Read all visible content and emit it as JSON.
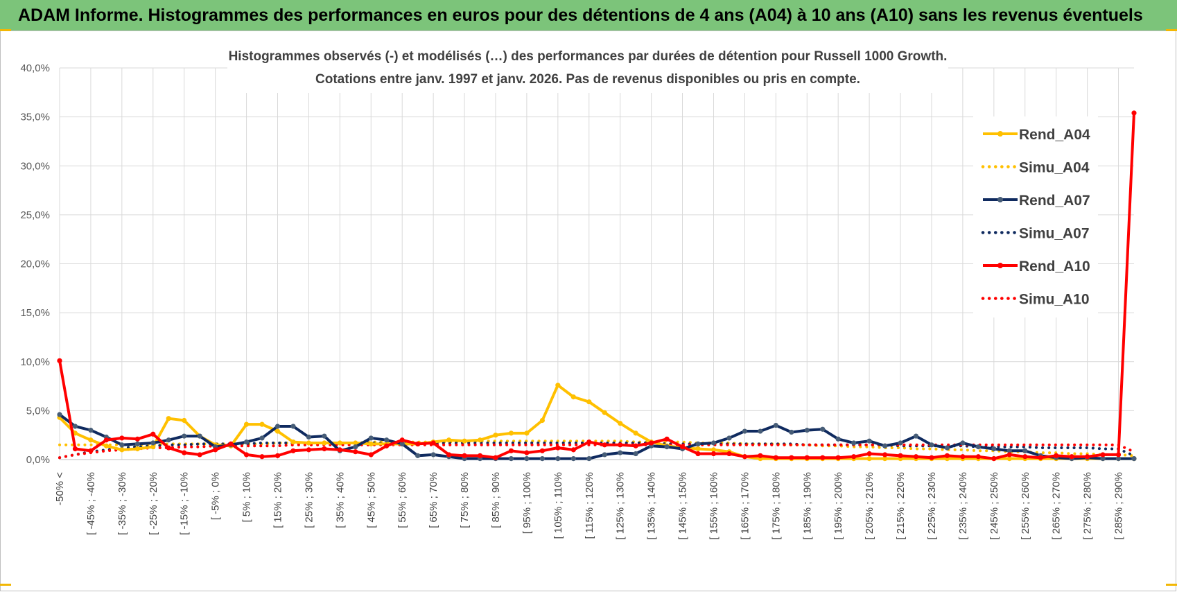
{
  "header": {
    "title": "ADAM Informe. Histogrammes des performances en euros pour des détentions de 4 ans (A04) à 10 ans (A10) sans les revenus éventuels"
  },
  "colors": {
    "banner": "#7cc47a",
    "accent": "#f2b705"
  },
  "chart_data": {
    "type": "line",
    "title": "Histogrammes observés (-) et modélisés (…) des performances par durées de détention pour Russell 1000 Growth.",
    "subtitle": "Cotations entre janv. 1997 et janv. 2026. Pas de revenus disponibles ou pris en compte.",
    "xlabel": "",
    "ylabel": "",
    "ylim": [
      0,
      40
    ],
    "yticks": [
      "0,0%",
      "5,0%",
      "10,0%",
      "15,0%",
      "20,0%",
      "25,0%",
      "30,0%",
      "35,0%",
      "40,0%"
    ],
    "x_tick_labels": [
      "-50% <",
      "[ -45% ; -40%",
      "[ -35% ; -30%",
      "[ -25% ; -20%",
      "[ -15% ; -10%",
      "[ -5% ; 0%",
      "[ 5% ; 10%",
      "[ 15% ; 20%",
      "[ 25% ; 30%",
      "[ 35% ; 40%",
      "[ 45% ; 50%",
      "[ 55% ; 60%",
      "[ 65% ; 70%",
      "[ 75% ; 80%",
      "[ 85% ; 90%",
      "[ 95% ; 100%",
      "[ 105% ; 110%",
      "[ 115% ; 120%",
      "[ 125% ; 130%",
      "[ 135% ; 140%",
      "[ 145% ; 150%",
      "[ 155% ; 160%",
      "[ 165% ; 170%",
      "[ 175% ; 180%",
      "[ 185% ; 190%",
      "[ 195% ; 200%",
      "[ 205% ; 210%",
      "[ 215% ; 220%",
      "[ 225% ; 230%",
      "[ 235% ; 240%",
      "[ 245% ; 250%",
      "[ 255% ; 260%",
      "[ 265% ; 270%",
      "[ 275% ; 280%",
      "[ 285% ; 290%"
    ],
    "category_count": 70,
    "grid": true,
    "legend_position": "right",
    "series": [
      {
        "name": "Rend_A04",
        "color": "#ffc000",
        "style": "solid",
        "markers": true,
        "values": [
          4.3,
          2.7,
          2.0,
          1.4,
          1.0,
          1.1,
          1.3,
          4.2,
          4.0,
          2.4,
          1.5,
          1.4,
          3.6,
          3.6,
          2.9,
          1.8,
          1.7,
          1.7,
          1.7,
          1.7,
          1.6,
          1.6,
          1.6,
          1.6,
          1.8,
          2.0,
          1.9,
          2.0,
          2.5,
          2.7,
          2.7,
          4.0,
          7.6,
          6.4,
          5.9,
          4.8,
          3.7,
          2.7,
          1.8,
          1.4,
          1.2,
          1.1,
          1.0,
          0.8,
          0.3,
          0.1,
          0.1,
          0.1,
          0.1,
          0.1,
          0.1,
          0.1,
          0.1,
          0.1,
          0.1,
          0.1,
          0.1,
          0.1,
          0.1,
          0.1,
          0.1,
          0.1,
          0.1,
          0.1,
          0.1,
          0.1,
          0.1,
          0.1,
          0.1,
          0.1
        ]
      },
      {
        "name": "Simu_A04",
        "color": "#ffc000",
        "style": "dotted",
        "markers": false,
        "values": [
          1.5,
          1.5,
          1.5,
          1.5,
          1.5,
          1.5,
          1.5,
          1.6,
          1.6,
          1.6,
          1.6,
          1.6,
          1.6,
          1.6,
          1.7,
          1.7,
          1.7,
          1.7,
          1.7,
          1.7,
          1.8,
          1.8,
          1.8,
          1.8,
          1.8,
          1.8,
          1.9,
          1.9,
          1.9,
          1.9,
          1.9,
          1.9,
          1.9,
          1.9,
          1.9,
          1.9,
          1.9,
          1.8,
          1.8,
          1.8,
          1.8,
          1.7,
          1.7,
          1.7,
          1.6,
          1.6,
          1.6,
          1.5,
          1.5,
          1.4,
          1.4,
          1.3,
          1.3,
          1.2,
          1.2,
          1.1,
          1.1,
          1.0,
          1.0,
          0.9,
          0.9,
          0.8,
          0.8,
          0.7,
          0.7,
          0.6,
          0.6,
          0.5,
          0.5,
          0.4
        ]
      },
      {
        "name": "Rend_A07",
        "color": "#0f2a5f",
        "style": "solid",
        "markers": true,
        "values": [
          4.6,
          3.4,
          3.0,
          2.3,
          1.5,
          1.6,
          1.7,
          2.0,
          2.4,
          2.4,
          1.3,
          1.5,
          1.8,
          2.2,
          3.4,
          3.4,
          2.3,
          2.4,
          0.9,
          1.3,
          2.2,
          2.0,
          1.6,
          0.4,
          0.5,
          0.3,
          0.1,
          0.1,
          0.1,
          0.1,
          0.1,
          0.1,
          0.1,
          0.1,
          0.1,
          0.5,
          0.7,
          0.6,
          1.4,
          1.3,
          1.1,
          1.6,
          1.7,
          2.2,
          2.9,
          2.9,
          3.5,
          2.8,
          3.0,
          3.1,
          2.1,
          1.7,
          1.9,
          1.4,
          1.7,
          2.4,
          1.5,
          1.2,
          1.7,
          1.3,
          1.1,
          0.9,
          0.9,
          0.4,
          0.2,
          0.1,
          0.2,
          0.1,
          0.1,
          0.1
        ]
      },
      {
        "name": "Simu_A07",
        "color": "#0f2a5f",
        "style": "dotted",
        "markers": false,
        "values": [
          0.2,
          0.5,
          0.8,
          1.0,
          1.2,
          1.3,
          1.4,
          1.5,
          1.5,
          1.6,
          1.6,
          1.6,
          1.6,
          1.7,
          1.7,
          1.7,
          1.7,
          1.7,
          1.7,
          1.7,
          1.7,
          1.7,
          1.7,
          1.7,
          1.7,
          1.7,
          1.7,
          1.7,
          1.7,
          1.7,
          1.7,
          1.7,
          1.7,
          1.7,
          1.7,
          1.7,
          1.7,
          1.7,
          1.7,
          1.6,
          1.6,
          1.6,
          1.6,
          1.6,
          1.6,
          1.6,
          1.6,
          1.6,
          1.5,
          1.5,
          1.5,
          1.5,
          1.5,
          1.5,
          1.4,
          1.4,
          1.4,
          1.4,
          1.4,
          1.3,
          1.3,
          1.3,
          1.3,
          1.2,
          1.2,
          1.2,
          1.2,
          1.1,
          1.1,
          0.4
        ]
      },
      {
        "name": "Rend_A10",
        "color": "#ff0000",
        "style": "solid",
        "markers": true,
        "values": [
          10.1,
          1.1,
          0.9,
          2.0,
          2.2,
          2.1,
          2.6,
          1.2,
          0.7,
          0.5,
          1.0,
          1.6,
          0.5,
          0.3,
          0.4,
          0.9,
          1.0,
          1.1,
          1.0,
          0.8,
          0.5,
          1.4,
          2.0,
          1.6,
          1.7,
          0.5,
          0.4,
          0.4,
          0.2,
          0.9,
          0.7,
          0.9,
          1.2,
          1.0,
          1.8,
          1.5,
          1.5,
          1.4,
          1.7,
          2.1,
          1.3,
          0.6,
          0.6,
          0.6,
          0.3,
          0.4,
          0.2,
          0.2,
          0.2,
          0.2,
          0.2,
          0.3,
          0.6,
          0.5,
          0.4,
          0.3,
          0.2,
          0.4,
          0.3,
          0.3,
          0.1,
          0.5,
          0.3,
          0.2,
          0.4,
          0.3,
          0.3,
          0.5,
          0.5,
          35.4
        ]
      },
      {
        "name": "Simu_A10",
        "color": "#ff0000",
        "style": "dotted",
        "markers": false,
        "values": [
          0.2,
          0.5,
          0.7,
          0.9,
          1.0,
          1.1,
          1.2,
          1.2,
          1.3,
          1.3,
          1.4,
          1.4,
          1.4,
          1.4,
          1.4,
          1.5,
          1.5,
          1.5,
          1.5,
          1.5,
          1.5,
          1.5,
          1.5,
          1.5,
          1.5,
          1.5,
          1.5,
          1.5,
          1.5,
          1.5,
          1.5,
          1.5,
          1.5,
          1.5,
          1.5,
          1.5,
          1.5,
          1.5,
          1.5,
          1.5,
          1.5,
          1.5,
          1.5,
          1.5,
          1.5,
          1.5,
          1.5,
          1.5,
          1.5,
          1.5,
          1.5,
          1.5,
          1.5,
          1.5,
          1.5,
          1.5,
          1.5,
          1.5,
          1.5,
          1.5,
          1.5,
          1.5,
          1.5,
          1.5,
          1.5,
          1.5,
          1.5,
          1.5,
          1.5,
          0.8
        ]
      }
    ]
  }
}
